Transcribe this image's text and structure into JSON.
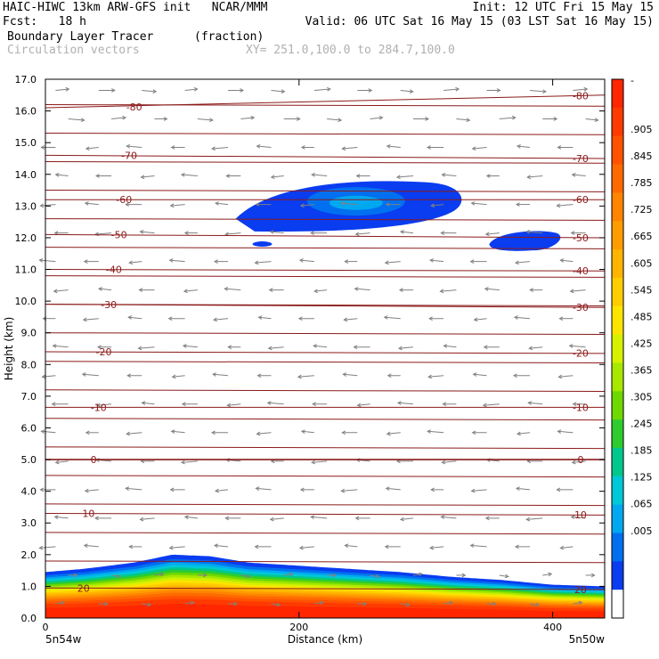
{
  "header": {
    "line1_left": "HAIC-HIWC 13km ARW-GFS init   NCAR/MMM",
    "line1_right": "Init: 12 UTC Fri 15 May 15",
    "line2_left": "Fcst:   18 h",
    "line2_right": "Valid: 06 UTC Sat 16 May 15 (03 LST Sat 16 May 15)",
    "field_name": "Boundary Layer Tracer",
    "field_units": "(fraction)",
    "vectors_label": "Circulation vectors",
    "xy_label": "XY= 251.0,100.0 to 284.7,100.0"
  },
  "chart_data": {
    "type": "heatmap",
    "title": "Boundary Layer Tracer",
    "xlabel": "Distance (km)",
    "ylabel": "Height (km)",
    "xlim": [
      0,
      441
    ],
    "ylim": [
      0,
      17
    ],
    "x_ticks": [
      0,
      200,
      400
    ],
    "x_tick_labels": [
      "0",
      "200",
      "400"
    ],
    "x_end_labels": [
      "5n54w",
      "5n50w"
    ],
    "y_ticks": [
      0,
      1,
      2,
      3,
      4,
      5,
      6,
      7,
      8,
      9,
      10,
      11,
      12,
      13,
      14,
      15,
      16,
      17
    ],
    "y_tick_labels": [
      "0.0",
      "1.0",
      "2.0",
      "3.0",
      "4.0",
      "5.0",
      "6.0",
      "7.0",
      "8.0",
      "9.0",
      "10.0",
      "11.0",
      "12.0",
      "13.0",
      "14.0",
      "15.0",
      "16.0",
      "17.0"
    ],
    "colorbar": {
      "top_label": "-",
      "labels": [
        ".905",
        ".845",
        ".785",
        ".725",
        ".665",
        ".605",
        ".545",
        ".485",
        ".425",
        ".365",
        ".305",
        ".245",
        ".185",
        ".125",
        ".065",
        ".005"
      ],
      "colors": [
        "#ff2600",
        "#ff3a00",
        "#ff5200",
        "#ff6a00",
        "#ff8400",
        "#ff9c00",
        "#ffb400",
        "#ffcc00",
        "#fce400",
        "#d6f000",
        "#a8e800",
        "#6ed800",
        "#2ecc2e",
        "#00c88c",
        "#00c8d8",
        "#00a8f0",
        "#0070f0",
        "#0a3cf0",
        "#ffffff"
      ]
    },
    "temperature_contours": {
      "levels": [
        20,
        10,
        0,
        -10,
        -20,
        -30,
        -40,
        -50,
        -60,
        -70,
        -80
      ],
      "labels": [
        "20",
        "10",
        "0",
        "-10",
        "-20",
        "-30",
        "-40",
        "-50",
        "-60",
        "-70",
        "-80"
      ],
      "left_heights_km": [
        0.95,
        3.3,
        5.0,
        6.65,
        8.4,
        9.9,
        11.0,
        12.1,
        13.2,
        14.6,
        16.1
      ],
      "right_heights_km": [
        0.9,
        3.25,
        5.0,
        6.65,
        8.35,
        9.8,
        10.95,
        12.0,
        13.2,
        14.5,
        16.5
      ],
      "color": "#8b1a1a"
    },
    "tracer_layer": {
      "top_height_km": [
        [
          0,
          1.45
        ],
        [
          30,
          1.55
        ],
        [
          70,
          1.75
        ],
        [
          100,
          2.0
        ],
        [
          130,
          1.95
        ],
        [
          160,
          1.75
        ],
        [
          200,
          1.65
        ],
        [
          240,
          1.55
        ],
        [
          280,
          1.45
        ],
        [
          320,
          1.3
        ],
        [
          360,
          1.2
        ],
        [
          400,
          1.05
        ],
        [
          441,
          1.0
        ]
      ]
    },
    "upper_features": [
      {
        "x_range_km": [
          150,
          330
        ],
        "height_range_km": [
          12.2,
          13.8
        ],
        "max_value": 0.065
      },
      {
        "x_range_km": [
          350,
          410
        ],
        "height_range_km": [
          11.6,
          12.2
        ],
        "max_value": 0.005
      },
      {
        "x_range_km": [
          162,
          180
        ],
        "height_range_km": [
          11.7,
          11.9
        ],
        "max_value": 0.005
      }
    ],
    "vectors": {
      "direction": "easterly aloft, westerly near surface",
      "color": "#808080"
    }
  }
}
